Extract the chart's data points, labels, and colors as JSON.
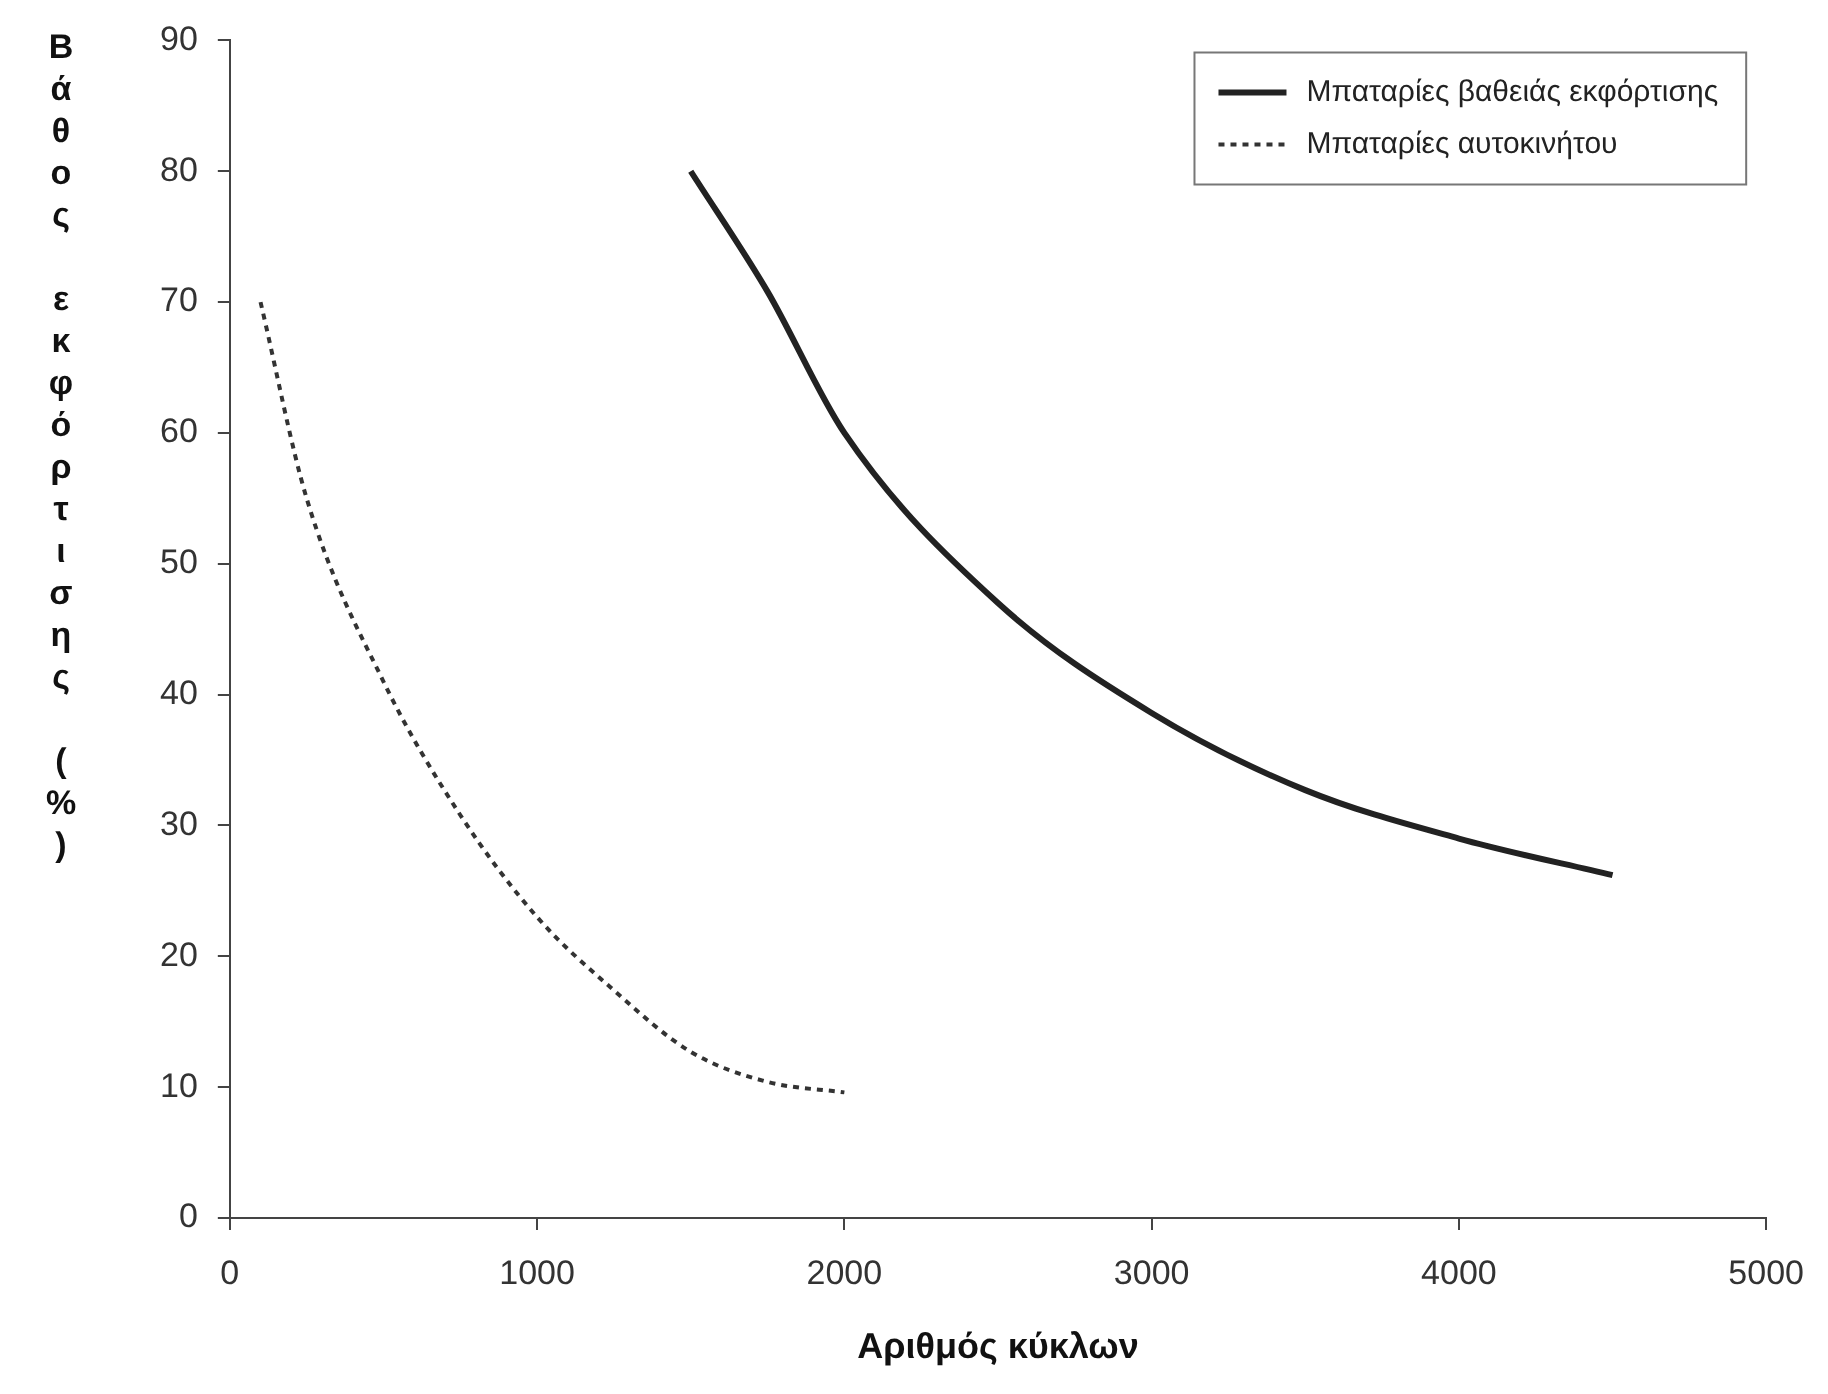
{
  "chart_data": {
    "type": "line",
    "xlabel": "Αριθμός κύκλων",
    "ylabel": "Βάθος εκφόρτισης (%)",
    "xlim": [
      0,
      5000
    ],
    "xticks": [
      0,
      1000,
      2000,
      3000,
      4000,
      5000
    ],
    "ylim": [
      0,
      90
    ],
    "yticks": [
      0,
      10,
      20,
      30,
      40,
      50,
      60,
      70,
      80,
      90
    ],
    "grid": false,
    "legend": "top right",
    "marker": "none",
    "series": [
      {
        "name": "Μπαταρίες βαθειάς εκφόρτισης",
        "color": "#222222",
        "line_style": "solid",
        "x": [
          1500,
          1750,
          2000,
          2500,
          3000,
          3500,
          4000,
          4500
        ],
        "values": [
          80,
          70.8,
          60,
          47,
          38.6,
          32.7,
          29,
          26.2
        ]
      },
      {
        "name": "Μπαταρίες αυτοκινήτου",
        "color": "#333333",
        "line_style": "dotted",
        "x": [
          100,
          250,
          500,
          750,
          1000,
          1250,
          1500,
          1750,
          2000
        ],
        "values": [
          70,
          55,
          41,
          30.8,
          23,
          17.4,
          12.7,
          10.4,
          9.6
        ]
      }
    ]
  }
}
